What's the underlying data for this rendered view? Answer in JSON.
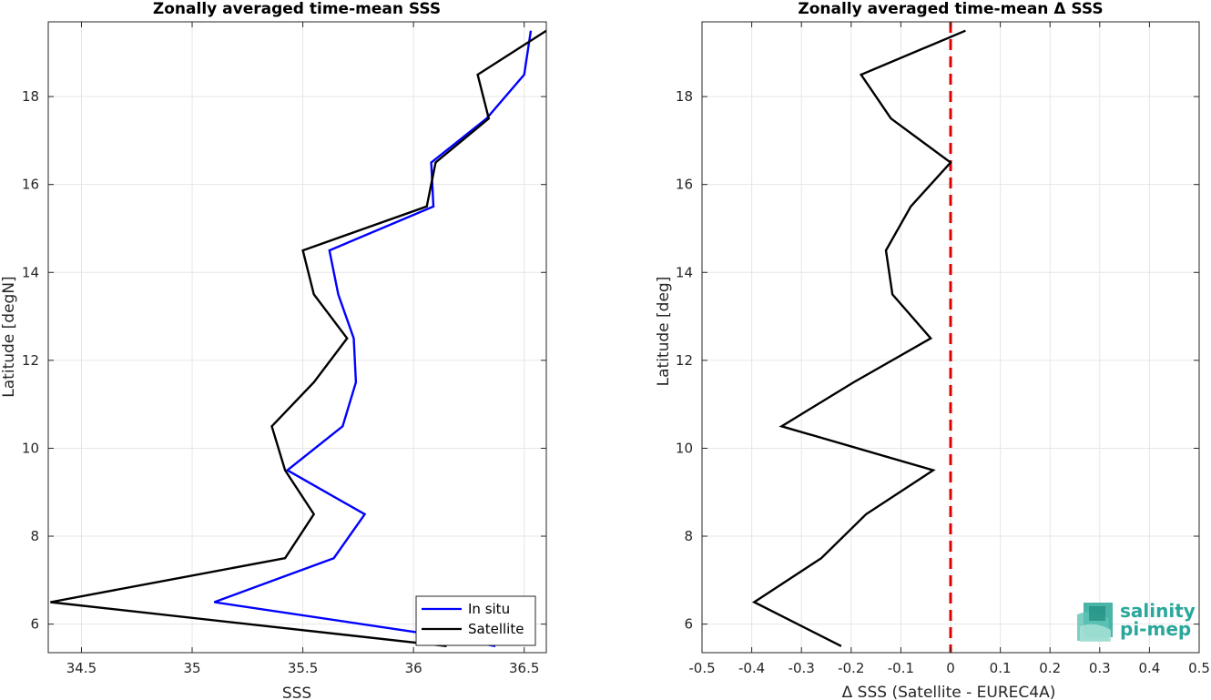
{
  "chart_data": [
    {
      "type": "line",
      "title": "Zonally averaged time-mean SSS",
      "xlabel": "SSS",
      "ylabel": "Latitude [degN]",
      "xlim": [
        34.35,
        36.6
      ],
      "ylim": [
        5.35,
        19.7
      ],
      "xticks": [
        34.5,
        35,
        35.5,
        36,
        36.5
      ],
      "xtick_labels": [
        "34.5",
        "35",
        "35.5",
        "36",
        "36.5"
      ],
      "yticks": [
        6,
        8,
        10,
        12,
        14,
        16,
        18
      ],
      "ytick_labels": [
        "6",
        "8",
        "10",
        "12",
        "14",
        "16",
        "18"
      ],
      "grid": true,
      "legend_position": "bottom-right",
      "series": [
        {
          "name": "In situ",
          "color": "#0000ff",
          "points": [
            [
              36.37,
              5.5
            ],
            [
              36.1,
              5.75
            ],
            [
              35.1,
              6.5
            ],
            [
              35.64,
              7.5
            ],
            [
              35.78,
              8.5
            ],
            [
              35.43,
              9.5
            ],
            [
              35.68,
              10.5
            ],
            [
              35.74,
              11.5
            ],
            [
              35.73,
              12.5
            ],
            [
              35.66,
              13.5
            ],
            [
              35.62,
              14.5
            ],
            [
              36.09,
              15.5
            ],
            [
              36.08,
              16.5
            ],
            [
              36.33,
              17.5
            ],
            [
              36.5,
              18.5
            ],
            [
              36.53,
              19.5
            ]
          ]
        },
        {
          "name": "Satellite",
          "color": "#000000",
          "points": [
            [
              36.15,
              5.5
            ],
            [
              34.36,
              6.5
            ],
            [
              35.42,
              7.5
            ],
            [
              35.55,
              8.5
            ],
            [
              35.42,
              9.5
            ],
            [
              35.36,
              10.5
            ],
            [
              35.55,
              11.5
            ],
            [
              35.7,
              12.5
            ],
            [
              35.55,
              13.5
            ],
            [
              35.5,
              14.5
            ],
            [
              36.06,
              15.5
            ],
            [
              36.1,
              16.5
            ],
            [
              36.34,
              17.5
            ],
            [
              36.29,
              18.5
            ],
            [
              36.6,
              19.5
            ]
          ]
        }
      ]
    },
    {
      "type": "line",
      "title": "Zonally averaged time-mean Δ SSS",
      "xlabel": "Δ SSS (Satellite - EUREC4A)",
      "ylabel": "Latitude [deg]",
      "xlim": [
        -0.5,
        0.5
      ],
      "ylim": [
        5.35,
        19.7
      ],
      "xticks": [
        -0.5,
        -0.4,
        -0.3,
        -0.2,
        -0.1,
        0,
        0.1,
        0.2,
        0.3,
        0.4,
        0.5
      ],
      "xtick_labels": [
        "-0.5",
        "-0.4",
        "-0.3",
        "-0.2",
        "-0.1",
        "0",
        "0.1",
        "0.2",
        "0.3",
        "0.4",
        "0.5"
      ],
      "yticks": [
        6,
        8,
        10,
        12,
        14,
        16,
        18
      ],
      "ytick_labels": [
        "6",
        "8",
        "10",
        "12",
        "14",
        "16",
        "18"
      ],
      "grid": true,
      "reference_line": {
        "x": 0,
        "color": "#e00000",
        "style": "dashed"
      },
      "series": [
        {
          "color": "#000000",
          "points": [
            [
              -0.22,
              5.5
            ],
            [
              -0.395,
              6.5
            ],
            [
              -0.26,
              7.5
            ],
            [
              -0.17,
              8.5
            ],
            [
              -0.035,
              9.5
            ],
            [
              -0.34,
              10.5
            ],
            [
              -0.195,
              11.5
            ],
            [
              -0.04,
              12.5
            ],
            [
              -0.117,
              13.5
            ],
            [
              -0.13,
              14.5
            ],
            [
              -0.08,
              15.5
            ],
            [
              0.0,
              16.5
            ],
            [
              -0.12,
              17.5
            ],
            [
              -0.18,
              18.5
            ],
            [
              0.03,
              19.5
            ]
          ]
        }
      ]
    }
  ],
  "logo": {
    "line1": "salinity",
    "line2": "pi-mep",
    "color": "#2aa79a"
  }
}
